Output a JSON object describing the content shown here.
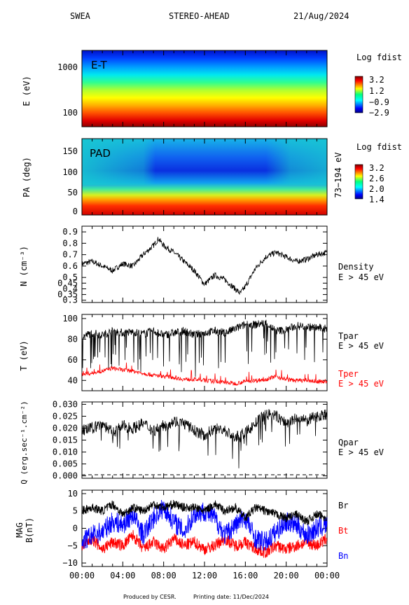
{
  "header": {
    "instrument": "SWEA",
    "spacecraft": "STEREO-AHEAD",
    "date": "21/Aug/2024"
  },
  "footer": {
    "produced_by": "Produced by CESR.",
    "printing_date": "Printing date: 11/Dec/2024"
  },
  "colors": {
    "black": "#000000",
    "red": "#ff0000",
    "blue": "#0000ff"
  },
  "chart_data": [
    {
      "type": "heatmap",
      "panel_label": "E-T",
      "ylabel": "E (eV)",
      "y_ticks": [
        "1000",
        "100"
      ],
      "y_scale": "log",
      "colorbar": {
        "title": "Log fdist",
        "ticks": [
          "3.2",
          "1.2",
          "−0.9",
          "−2.9"
        ],
        "range": [
          -2.9,
          3.2
        ]
      }
    },
    {
      "type": "heatmap",
      "panel_label": "PAD",
      "ylabel": "PA (deg)",
      "y_ticks": [
        "150",
        "100",
        "50",
        "0"
      ],
      "ylim": [
        0,
        180
      ],
      "right_label": "73−194 eV",
      "colorbar": {
        "title": "Log fdist",
        "ticks": [
          "3.2",
          "2.6",
          "2.0",
          "1.4"
        ],
        "range": [
          1.4,
          3.2
        ]
      }
    },
    {
      "type": "line",
      "ylabel": "N (cm⁻³)",
      "y_ticks": [
        "0.9",
        "0.8",
        "0.7",
        "0.6",
        "0.5",
        "0.45",
        "0.4",
        "0.35",
        "0.3"
      ],
      "ylim": [
        0.28,
        0.95
      ],
      "series": [
        {
          "name": "Density",
          "name_sub": "E > 45 eV",
          "x": [
            0,
            1,
            2,
            3,
            4,
            5,
            6,
            7,
            7.5,
            8,
            9,
            10,
            11,
            12,
            13,
            14,
            15,
            15.5,
            16,
            17,
            18,
            19,
            20,
            21,
            22,
            23,
            24
          ],
          "values": [
            0.62,
            0.64,
            0.6,
            0.56,
            0.62,
            0.6,
            0.7,
            0.78,
            0.84,
            0.78,
            0.72,
            0.64,
            0.56,
            0.44,
            0.52,
            0.48,
            0.4,
            0.36,
            0.42,
            0.58,
            0.68,
            0.72,
            0.68,
            0.64,
            0.66,
            0.7,
            0.72
          ]
        }
      ]
    },
    {
      "type": "line",
      "ylabel": "T (eV)",
      "y_ticks": [
        "100",
        "80",
        "60",
        "40"
      ],
      "ylim": [
        30,
        104
      ],
      "series": [
        {
          "name": "Tpar",
          "name_sub": "E > 45 eV",
          "x": [
            0,
            1,
            2,
            3,
            4,
            5,
            6,
            7,
            8,
            9,
            10,
            11,
            12,
            13,
            14,
            15,
            16,
            17,
            18,
            19,
            20,
            21,
            22,
            23,
            24
          ],
          "values": [
            82,
            86,
            84,
            88,
            86,
            87,
            85,
            88,
            84,
            86,
            88,
            84,
            86,
            88,
            86,
            90,
            94,
            94,
            96,
            88,
            89,
            93,
            92,
            91,
            90
          ]
        },
        {
          "name": "Tper",
          "name_sub": "E > 45 eV",
          "x": [
            0,
            1,
            2,
            3,
            4,
            5,
            6,
            7,
            8,
            9,
            10,
            11,
            12,
            13,
            14,
            15,
            16,
            17,
            18,
            19,
            20,
            21,
            22,
            23,
            24
          ],
          "values": [
            46,
            47,
            49,
            52,
            50,
            49,
            47,
            45,
            44,
            43,
            41,
            41,
            40,
            39,
            38,
            37,
            39,
            40,
            41,
            44,
            41,
            40,
            40,
            39,
            39
          ]
        }
      ]
    },
    {
      "type": "line",
      "ylabel": "Q (erg.sec⁻¹.cm⁻²)",
      "y_ticks": [
        "0.030",
        "0.025",
        "0.020",
        "0.015",
        "0.010",
        "0.005",
        "0.000"
      ],
      "ylim": [
        -0.001,
        0.031
      ],
      "series": [
        {
          "name": "Qpar",
          "name_sub": "E > 45 eV",
          "x": [
            0,
            1,
            2,
            3,
            4,
            5,
            6,
            7,
            8,
            9,
            10,
            11,
            12,
            13,
            14,
            15,
            16,
            17,
            18,
            19,
            20,
            21,
            22,
            23,
            24
          ],
          "values": [
            0.019,
            0.02,
            0.022,
            0.018,
            0.021,
            0.02,
            0.022,
            0.019,
            0.021,
            0.023,
            0.022,
            0.019,
            0.017,
            0.02,
            0.019,
            0.016,
            0.018,
            0.022,
            0.026,
            0.025,
            0.022,
            0.024,
            0.023,
            0.025,
            0.026
          ]
        }
      ]
    },
    {
      "type": "line",
      "ylabel": "MAG",
      "ylabel2": "B(nT)",
      "y_ticks": [
        "10",
        "5",
        "0",
        "−5",
        "−10"
      ],
      "ylim": [
        -11,
        11
      ],
      "x_ticks": [
        "00:00",
        "04:00",
        "08:00",
        "12:00",
        "16:00",
        "20:00",
        "00:00"
      ],
      "xlim": [
        0,
        24
      ],
      "series": [
        {
          "name": "Br",
          "color": "#000000",
          "x": [
            0,
            1,
            2,
            3,
            4,
            5,
            6,
            7,
            8,
            9,
            10,
            11,
            12,
            13,
            14,
            15,
            16,
            17,
            18,
            19,
            20,
            21,
            22,
            23,
            24
          ],
          "values": [
            5,
            6,
            5,
            7,
            4,
            6,
            5,
            7,
            6,
            7,
            6,
            6,
            5,
            7,
            5,
            6,
            3,
            6,
            5,
            4,
            3,
            4,
            2,
            4,
            3
          ]
        },
        {
          "name": "Bt",
          "color": "#ff0000",
          "x": [
            0,
            1,
            2,
            3,
            4,
            5,
            6,
            7,
            8,
            9,
            10,
            11,
            12,
            13,
            14,
            15,
            16,
            17,
            18,
            19,
            20,
            21,
            22,
            23,
            24
          ],
          "values": [
            -5,
            -3,
            -6,
            -4,
            -5,
            -2,
            -6,
            -4,
            -6,
            -3,
            -5,
            -4,
            -6,
            -5,
            -3,
            -5,
            -4,
            -6,
            -7,
            -5,
            -6,
            -5,
            -4,
            -5,
            -3
          ]
        },
        {
          "name": "Bn",
          "color": "#0000ff",
          "x": [
            0,
            1,
            2,
            3,
            4,
            5,
            6,
            7,
            8,
            9,
            10,
            11,
            12,
            13,
            14,
            15,
            16,
            17,
            18,
            19,
            20,
            21,
            22,
            23,
            24
          ],
          "values": [
            -4,
            -2,
            -1,
            2,
            1,
            4,
            -2,
            3,
            6,
            2,
            -1,
            4,
            5,
            3,
            -2,
            1,
            3,
            -3,
            -4,
            -1,
            2,
            1,
            -2,
            0,
            1
          ]
        }
      ]
    }
  ]
}
